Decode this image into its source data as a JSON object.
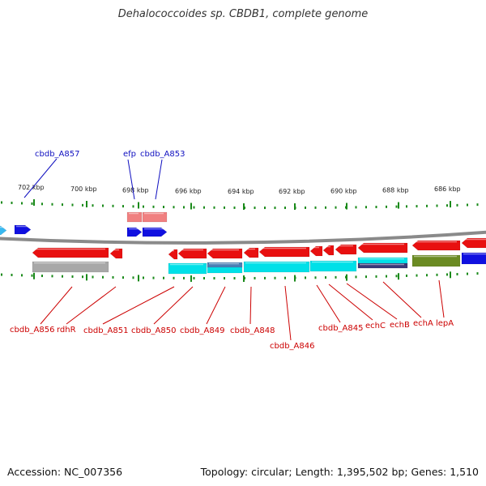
{
  "title": "Dehalococcoides sp. CBDB1, complete genome",
  "footer": {
    "accession": "Accession: NC_007356",
    "stats": "Topology: circular; Length: 1,395,502 bp; Genes: 1,510"
  },
  "colors": {
    "forward_gene": "#1010e0",
    "reverse_gene": "#e81010",
    "pseudogene": "#a8a8a8",
    "cds_cyan": "#00e0e8",
    "olive": "#6b8b23",
    "navy": "#383878",
    "steelblue": "#4a7fb5",
    "backbone": "#8a8a8a",
    "tick": "#1a8a1a",
    "label_blue": "#1010c0",
    "label_red": "#cc0000"
  },
  "ticks": [
    {
      "label": "702 kbp"
    },
    {
      "label": "700 kbp"
    },
    {
      "label": "698 kbp"
    },
    {
      "label": "696 kbp"
    },
    {
      "label": "694 kbp"
    },
    {
      "label": "692 kbp"
    },
    {
      "label": "690 kbp"
    },
    {
      "label": "688 kbp"
    },
    {
      "label": "686 kbp"
    }
  ],
  "top_labels": [
    {
      "text": "cbdb_A857"
    },
    {
      "text": "efp"
    },
    {
      "text": "cbdb_A853"
    }
  ],
  "bottom_labels": [
    {
      "text": "cbdb_A856"
    },
    {
      "text": "rdhR"
    },
    {
      "text": "cbdb_A851"
    },
    {
      "text": "cbdb_A850"
    },
    {
      "text": "cbdb_A849"
    },
    {
      "text": "cbdb_A848"
    },
    {
      "text": "cbdb_A846"
    },
    {
      "text": "cbdb_A845"
    },
    {
      "text": "echC"
    },
    {
      "text": "echB"
    },
    {
      "text": "echA"
    },
    {
      "text": "lepA"
    }
  ]
}
